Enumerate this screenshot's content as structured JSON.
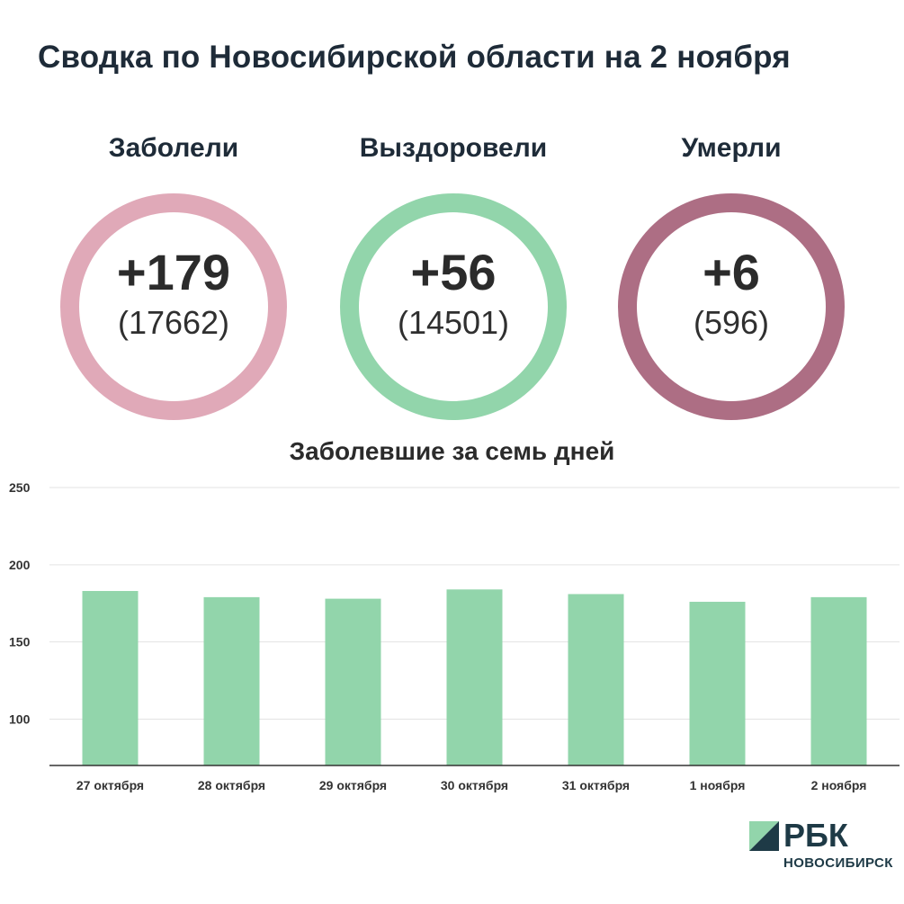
{
  "page": {
    "title": "Сводка по Новосибирской области на 2 ноября"
  },
  "stats": [
    {
      "label": "Заболели",
      "daily": "+179",
      "total": "(17662)",
      "color": "#e0a9b8"
    },
    {
      "label": "Выздоровели",
      "daily": "+56",
      "total": "(14501)",
      "color": "#92d5ab"
    },
    {
      "label": "Умерли",
      "daily": "+6",
      "total": "(596)",
      "color": "#ad6e84"
    }
  ],
  "chart_data": {
    "type": "bar",
    "title": "Заболевшие за семь дней",
    "categories": [
      "27 октября",
      "28 октября",
      "29 октября",
      "30 октября",
      "31 октября",
      "1 ноября",
      "2 ноября"
    ],
    "values": [
      183,
      179,
      178,
      184,
      181,
      176,
      179
    ],
    "ylim": [
      70,
      250
    ],
    "yticks": [
      100,
      150,
      200,
      250
    ],
    "grid": true,
    "bar_color": "#92d5ab",
    "xlabel": "",
    "ylabel": ""
  },
  "logo": {
    "brand": "РБК",
    "sub": "НОВОСИБИРСК",
    "colors": [
      "#1e3a46",
      "#92d5ab"
    ]
  }
}
